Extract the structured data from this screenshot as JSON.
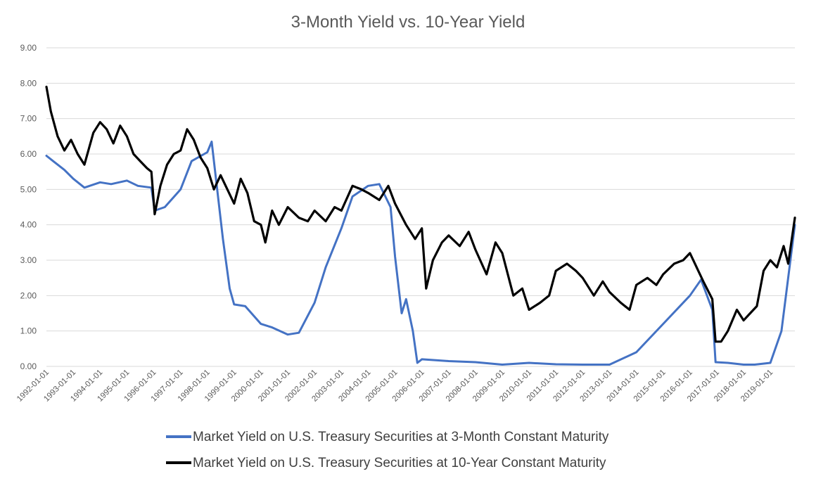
{
  "chart_data": {
    "type": "line",
    "title": "3-Month Yield vs. 10-Year Yield",
    "xlabel": "",
    "ylabel": "",
    "ylim": [
      0,
      9
    ],
    "grid": true,
    "legend_position": "bottom",
    "y_ticks": [
      "0.00",
      "1.00",
      "2.00",
      "3.00",
      "4.00",
      "5.00",
      "6.00",
      "7.00",
      "8.00",
      "9.00"
    ],
    "x_ticks": [
      "1992-01-01",
      "1993-01-01",
      "1994-01-01",
      "1995-01-01",
      "1996-01-01",
      "1997-01-01",
      "1998-01-01",
      "1999-01-01",
      "2000-01-01",
      "2001-01-01",
      "2002-01-01",
      "2003-01-01",
      "2004-01-01",
      "2005-01-01",
      "2006-01-01",
      "2007-01-01",
      "2008-01-01",
      "2009-01-01",
      "2010-01-01",
      "2011-01-01",
      "2012-01-01",
      "2013-01-01",
      "2014-01-01",
      "2015-01-01",
      "2016-01-01",
      "2017-01-01",
      "2018-01-01",
      "2019-01-01"
    ],
    "series": [
      {
        "name": "Market Yield on U.S. Treasury Securities at 3-Month Constant Maturity",
        "color": "#4472c4",
        "x": [
          "1992-01-01",
          "1992-04-01",
          "1992-09-01",
          "1993-01-01",
          "1993-06-01",
          "1994-01-01",
          "1994-06-01",
          "1995-01-01",
          "1995-06-01",
          "1995-12-01",
          "1996-01-15",
          "1996-06-01",
          "1997-01-01",
          "1997-06-01",
          "1998-01-01",
          "1998-03-01",
          "1998-08-01",
          "1998-11-01",
          "1999-01-01",
          "1999-06-01",
          "2000-01-01",
          "2000-06-01",
          "2001-01-01",
          "2001-06-01",
          "2002-01-01",
          "2002-06-01",
          "2003-01-01",
          "2003-06-01",
          "2004-01-01",
          "2004-06-01",
          "2004-11-01",
          "2005-01-01",
          "2005-04-01",
          "2005-06-01",
          "2005-09-01",
          "2005-11-01",
          "2006-01-01",
          "2007-01-01",
          "2008-01-01",
          "2009-01-01",
          "2010-01-01",
          "2011-01-01",
          "2012-01-01",
          "2013-01-01",
          "2014-01-01",
          "2015-01-01",
          "2016-01-01",
          "2016-06-01",
          "2016-11-01",
          "2016-12-15",
          "2017-06-01",
          "2018-01-01",
          "2018-06-01",
          "2019-01-01",
          "2019-06-01",
          "2019-12-01"
        ],
        "values": [
          5.95,
          5.8,
          5.55,
          5.3,
          5.05,
          5.2,
          5.15,
          5.25,
          5.1,
          5.05,
          4.4,
          4.5,
          5.0,
          5.8,
          6.05,
          6.35,
          3.6,
          2.2,
          1.75,
          1.7,
          1.2,
          1.1,
          0.9,
          0.95,
          1.8,
          2.8,
          3.9,
          4.8,
          5.1,
          5.15,
          4.5,
          3.1,
          1.5,
          1.9,
          1.0,
          0.1,
          0.2,
          0.15,
          0.12,
          0.05,
          0.1,
          0.06,
          0.05,
          0.05,
          0.4,
          1.2,
          2.0,
          2.45,
          1.6,
          0.12,
          0.1,
          0.05,
          0.05,
          0.1,
          1.0,
          4.0
        ]
      },
      {
        "name": "Market Yield on U.S. Treasury Securities at 10-Year Constant Maturity",
        "color": "#000000",
        "x": [
          "1992-01-01",
          "1992-03-01",
          "1992-06-01",
          "1992-09-01",
          "1992-12-01",
          "1993-03-01",
          "1993-06-01",
          "1993-10-01",
          "1994-01-01",
          "1994-04-01",
          "1994-07-01",
          "1994-10-01",
          "1995-01-01",
          "1995-04-01",
          "1995-07-01",
          "1995-10-01",
          "1995-12-01",
          "1996-01-15",
          "1996-04-01",
          "1996-07-01",
          "1996-10-01",
          "1997-01-01",
          "1997-04-01",
          "1997-07-01",
          "1997-10-01",
          "1998-01-01",
          "1998-04-01",
          "1998-07-01",
          "1998-10-01",
          "1999-01-01",
          "1999-04-01",
          "1999-07-01",
          "1999-10-01",
          "2000-01-01",
          "2000-03-01",
          "2000-06-01",
          "2000-09-01",
          "2001-01-01",
          "2001-06-01",
          "2001-10-01",
          "2002-01-01",
          "2002-06-01",
          "2002-10-01",
          "2003-01-01",
          "2003-06-01",
          "2003-10-01",
          "2004-01-01",
          "2004-06-01",
          "2004-10-01",
          "2005-01-01",
          "2005-06-01",
          "2005-10-01",
          "2006-01-01",
          "2006-03-01",
          "2006-06-01",
          "2006-10-01",
          "2007-01-01",
          "2007-06-01",
          "2007-10-01",
          "2008-01-01",
          "2008-06-01",
          "2008-10-01",
          "2009-01-01",
          "2009-06-01",
          "2009-10-01",
          "2010-01-01",
          "2010-06-01",
          "2010-10-01",
          "2011-01-01",
          "2011-06-01",
          "2011-10-01",
          "2012-01-01",
          "2012-06-01",
          "2012-10-01",
          "2013-01-01",
          "2013-06-01",
          "2013-10-01",
          "2014-01-01",
          "2014-06-01",
          "2014-10-01",
          "2015-01-01",
          "2015-06-01",
          "2015-10-01",
          "2016-01-01",
          "2016-04-01",
          "2016-07-01",
          "2016-11-01",
          "2016-12-15",
          "2017-03-01",
          "2017-06-01",
          "2017-10-01",
          "2018-01-01",
          "2018-04-01",
          "2018-07-01",
          "2018-10-01",
          "2019-01-01",
          "2019-04-01",
          "2019-07-01",
          "2019-09-01",
          "2019-12-01"
        ],
        "values": [
          7.9,
          7.2,
          6.5,
          6.1,
          6.4,
          6.0,
          5.7,
          6.6,
          6.9,
          6.7,
          6.3,
          6.8,
          6.5,
          6.0,
          5.8,
          5.6,
          5.5,
          4.3,
          5.1,
          5.7,
          6.0,
          6.1,
          6.7,
          6.4,
          5.9,
          5.6,
          5.0,
          5.4,
          5.0,
          4.6,
          5.3,
          4.9,
          4.1,
          4.0,
          3.5,
          4.4,
          4.0,
          4.5,
          4.2,
          4.1,
          4.4,
          4.1,
          4.5,
          4.4,
          5.1,
          5.0,
          4.9,
          4.7,
          5.1,
          4.6,
          4.0,
          3.6,
          3.9,
          2.2,
          3.0,
          3.5,
          3.7,
          3.4,
          3.8,
          3.3,
          2.6,
          3.5,
          3.2,
          2.0,
          2.2,
          1.6,
          1.8,
          2.0,
          2.7,
          2.9,
          2.7,
          2.5,
          2.0,
          2.4,
          2.1,
          1.8,
          1.6,
          2.3,
          2.5,
          2.3,
          2.6,
          2.9,
          3.0,
          3.2,
          2.8,
          2.4,
          1.9,
          0.7,
          0.7,
          1.0,
          1.6,
          1.3,
          1.5,
          1.7,
          2.7,
          3.0,
          2.8,
          3.4,
          2.9,
          4.2
        ]
      }
    ]
  }
}
